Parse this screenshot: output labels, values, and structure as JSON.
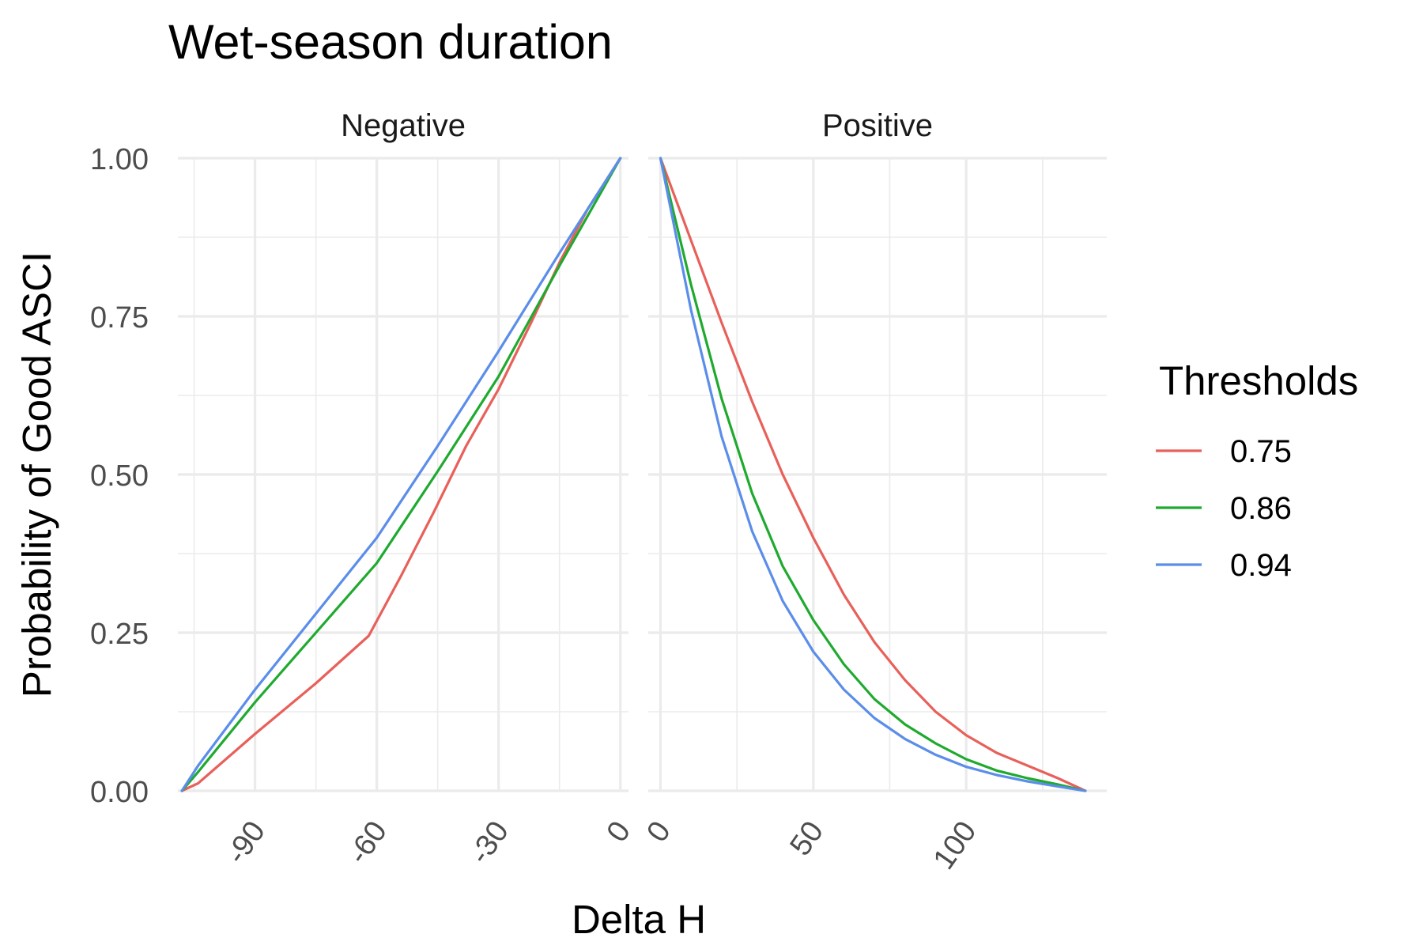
{
  "chart_data": {
    "type": "line",
    "title": "Wet-season duration",
    "xlabel": "Delta H",
    "ylabel": "Probability of Good ASCI",
    "legend_title": "Thresholds",
    "legend_position": "right",
    "grid": true,
    "ylim": [
      0,
      1
    ],
    "y_ticks": [
      0,
      0.25,
      0.5,
      0.75,
      1
    ],
    "y_tick_labels": [
      "0.00",
      "0.25",
      "0.50",
      "0.75",
      "1.00"
    ],
    "colors": {
      "0.75": "#E8605A",
      "0.86": "#1FAA2F",
      "0.94": "#5B8DEA"
    },
    "panels": [
      {
        "label": "Negative",
        "xlim": [
          -109,
          2
        ],
        "x_ticks": [
          -90,
          -60,
          -30,
          0
        ],
        "x_tick_labels": [
          "-90",
          "-60",
          "-30",
          "0"
        ],
        "x_minor": [
          -105,
          -75,
          -45,
          -15
        ],
        "series": [
          {
            "name": "0.75",
            "x": [
              -108,
              -104,
              -90,
              -75,
              -62,
              -54,
              -46,
              -38,
              -30,
              -22,
              -15,
              -8,
              0
            ],
            "y": [
              0,
              0.012,
              0.09,
              0.17,
              0.245,
              0.34,
              0.44,
              0.545,
              0.635,
              0.74,
              0.835,
              0.92,
              1.0
            ]
          },
          {
            "name": "0.86",
            "x": [
              -108,
              -104,
              -90,
              -75,
              -60,
              -45,
              -30,
              -15,
              0
            ],
            "y": [
              0,
              0.03,
              0.14,
              0.25,
              0.36,
              0.505,
              0.655,
              0.83,
              1.0
            ]
          },
          {
            "name": "0.94",
            "x": [
              -108,
              -104,
              -90,
              -75,
              -60,
              -45,
              -30,
              -15,
              0
            ],
            "y": [
              0,
              0.04,
              0.16,
              0.28,
              0.4,
              0.545,
              0.695,
              0.85,
              1.0
            ]
          }
        ]
      },
      {
        "label": "Positive",
        "xlim": [
          -4,
          146
        ],
        "x_ticks": [
          0,
          50,
          100
        ],
        "x_tick_labels": [
          "0",
          "50",
          "100"
        ],
        "x_minor": [
          25,
          75,
          125
        ],
        "series": [
          {
            "name": "0.75",
            "x": [
              0,
              10,
              20,
              30,
              40,
              50,
              60,
              70,
              80,
              90,
              100,
              110,
              120,
              130,
              139
            ],
            "y": [
              1.0,
              0.87,
              0.74,
              0.615,
              0.5,
              0.4,
              0.31,
              0.235,
              0.175,
              0.125,
              0.088,
              0.06,
              0.04,
              0.02,
              0.0
            ]
          },
          {
            "name": "0.86",
            "x": [
              0,
              10,
              20,
              30,
              40,
              50,
              60,
              70,
              80,
              90,
              100,
              110,
              120,
              130,
              139
            ],
            "y": [
              1.0,
              0.8,
              0.62,
              0.47,
              0.355,
              0.27,
              0.2,
              0.145,
              0.105,
              0.075,
              0.05,
              0.032,
              0.02,
              0.01,
              0.0
            ]
          },
          {
            "name": "0.94",
            "x": [
              0,
              10,
              20,
              30,
              40,
              50,
              60,
              70,
              80,
              90,
              100,
              110,
              120,
              130,
              139
            ],
            "y": [
              1.0,
              0.76,
              0.56,
              0.41,
              0.3,
              0.22,
              0.16,
              0.115,
              0.082,
              0.057,
              0.038,
              0.025,
              0.015,
              0.007,
              0.0
            ]
          }
        ]
      }
    ]
  }
}
